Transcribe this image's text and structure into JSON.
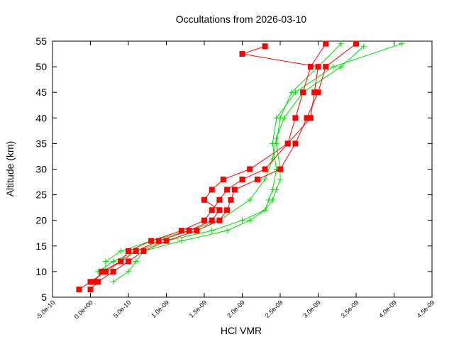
{
  "chart_data": {
    "type": "line",
    "title": "Occultations from 2026-03-10",
    "xlabel": "HCl VMR",
    "ylabel": "Altitude (km)",
    "xlim": [
      -5e-10,
      4.5e-09
    ],
    "ylim": [
      5,
      55
    ],
    "xticks": [
      {
        "value": -5e-10,
        "label": "-5.0e-10"
      },
      {
        "value": 0,
        "label": "0.0e+00"
      },
      {
        "value": 5e-10,
        "label": "5.0e-10"
      },
      {
        "value": 1e-09,
        "label": "1.0e-09"
      },
      {
        "value": 1.5e-09,
        "label": "1.5e-09"
      },
      {
        "value": 2e-09,
        "label": "2.0e-09"
      },
      {
        "value": 2.5e-09,
        "label": "2.5e-09"
      },
      {
        "value": 3e-09,
        "label": "3.0e-09"
      },
      {
        "value": 3.5e-09,
        "label": "3.5e-09"
      },
      {
        "value": 4e-09,
        "label": "4.0e-09"
      },
      {
        "value": 4.5e-09,
        "label": "4.5e-09"
      }
    ],
    "yticks": [
      5,
      10,
      15,
      20,
      25,
      30,
      35,
      40,
      45,
      50,
      55
    ],
    "series": [
      {
        "color": "#00e000",
        "marker": "plus",
        "x": [
          1e-10,
          3e-10,
          6e-10,
          1e-09,
          1.6e-09,
          2e-09,
          2.3e-09,
          2.4e-09,
          2.45e-09,
          2.5e-09,
          2.5e-09,
          2.45e-09,
          2.5e-09,
          2.65e-09,
          3e-09,
          3.3e-09
        ],
        "values": [
          10,
          12,
          14,
          16,
          18,
          20,
          22,
          24,
          26,
          28,
          30,
          35,
          40,
          45,
          50,
          54.5
        ]
      },
      {
        "color": "#00e000",
        "marker": "plus",
        "x": [
          3e-10,
          5e-10,
          6e-10,
          7e-10,
          1.2e-09,
          1.8e-09,
          2.1e-09,
          2.3e-09,
          2.35e-09,
          2.4e-09,
          2.45e-09,
          2.4e-09,
          2.45e-09,
          2.7e-09,
          3.2e-09,
          4.1e-09
        ],
        "values": [
          8,
          10,
          12,
          14,
          16,
          18,
          20,
          22,
          24,
          26,
          30,
          35,
          40,
          45,
          50,
          54.5
        ]
      },
      {
        "color": "#00e000",
        "marker": "plus",
        "x": [
          2e-10,
          2e-10,
          4e-10,
          8e-10,
          1.3e-09,
          1.7e-09,
          2.1e-09,
          2.3e-09,
          2.4e-09,
          2.45e-09,
          2.55e-09,
          2.8e-09,
          3.3e-09,
          3.6e-09
        ],
        "values": [
          10,
          12,
          14,
          16,
          18,
          20,
          24,
          28,
          32,
          36,
          40,
          45,
          50,
          54
        ]
      },
      {
        "color": "#ff0000",
        "marker": "square",
        "x": [
          -1.5e-10,
          0,
          2e-10,
          4e-10,
          5e-10,
          8e-10,
          1.2e-09,
          1.5e-09,
          1.6e-09,
          1.7e-09,
          1.8e-09,
          2e-09,
          2.3e-09,
          2.6e-09,
          2.7e-09,
          2.8e-09,
          2.9e-09,
          3.1e-09
        ],
        "values": [
          6.5,
          8,
          10,
          12,
          14,
          16,
          18,
          20,
          22,
          24,
          26,
          28,
          30,
          35,
          40,
          45,
          50,
          54.5
        ]
      },
      {
        "color": "#ff0000",
        "marker": "square",
        "x": [
          0,
          1e-10,
          3e-10,
          5e-10,
          7e-10,
          1e-09,
          1.4e-09,
          1.7e-09,
          1.8e-09,
          1.85e-09,
          1.9e-09,
          2.2e-09,
          2.5e-09,
          2.7e-09,
          2.85e-09,
          3e-09,
          3.1e-09,
          3.5e-09
        ],
        "values": [
          6.5,
          8,
          10,
          12,
          14,
          16,
          18,
          20,
          22,
          24,
          26,
          28,
          30,
          35,
          40,
          45,
          50,
          54.5
        ]
      },
      {
        "color": "#ff0000",
        "marker": "square",
        "x": [
          5e-11,
          1.5e-10,
          4e-10,
          6e-10,
          9e-10,
          1.3e-09,
          1.6e-09,
          1.7e-09,
          1.5e-09,
          1.6e-09,
          1.75e-09,
          2.1e-09,
          2.6e-09,
          2.9e-09,
          2.95e-09,
          3e-09,
          2e-09,
          2.3e-09
        ],
        "values": [
          8,
          10,
          12,
          14,
          16,
          18,
          20,
          22,
          24,
          26,
          28,
          30,
          35,
          40,
          45,
          50,
          52.5,
          54
        ]
      }
    ]
  }
}
